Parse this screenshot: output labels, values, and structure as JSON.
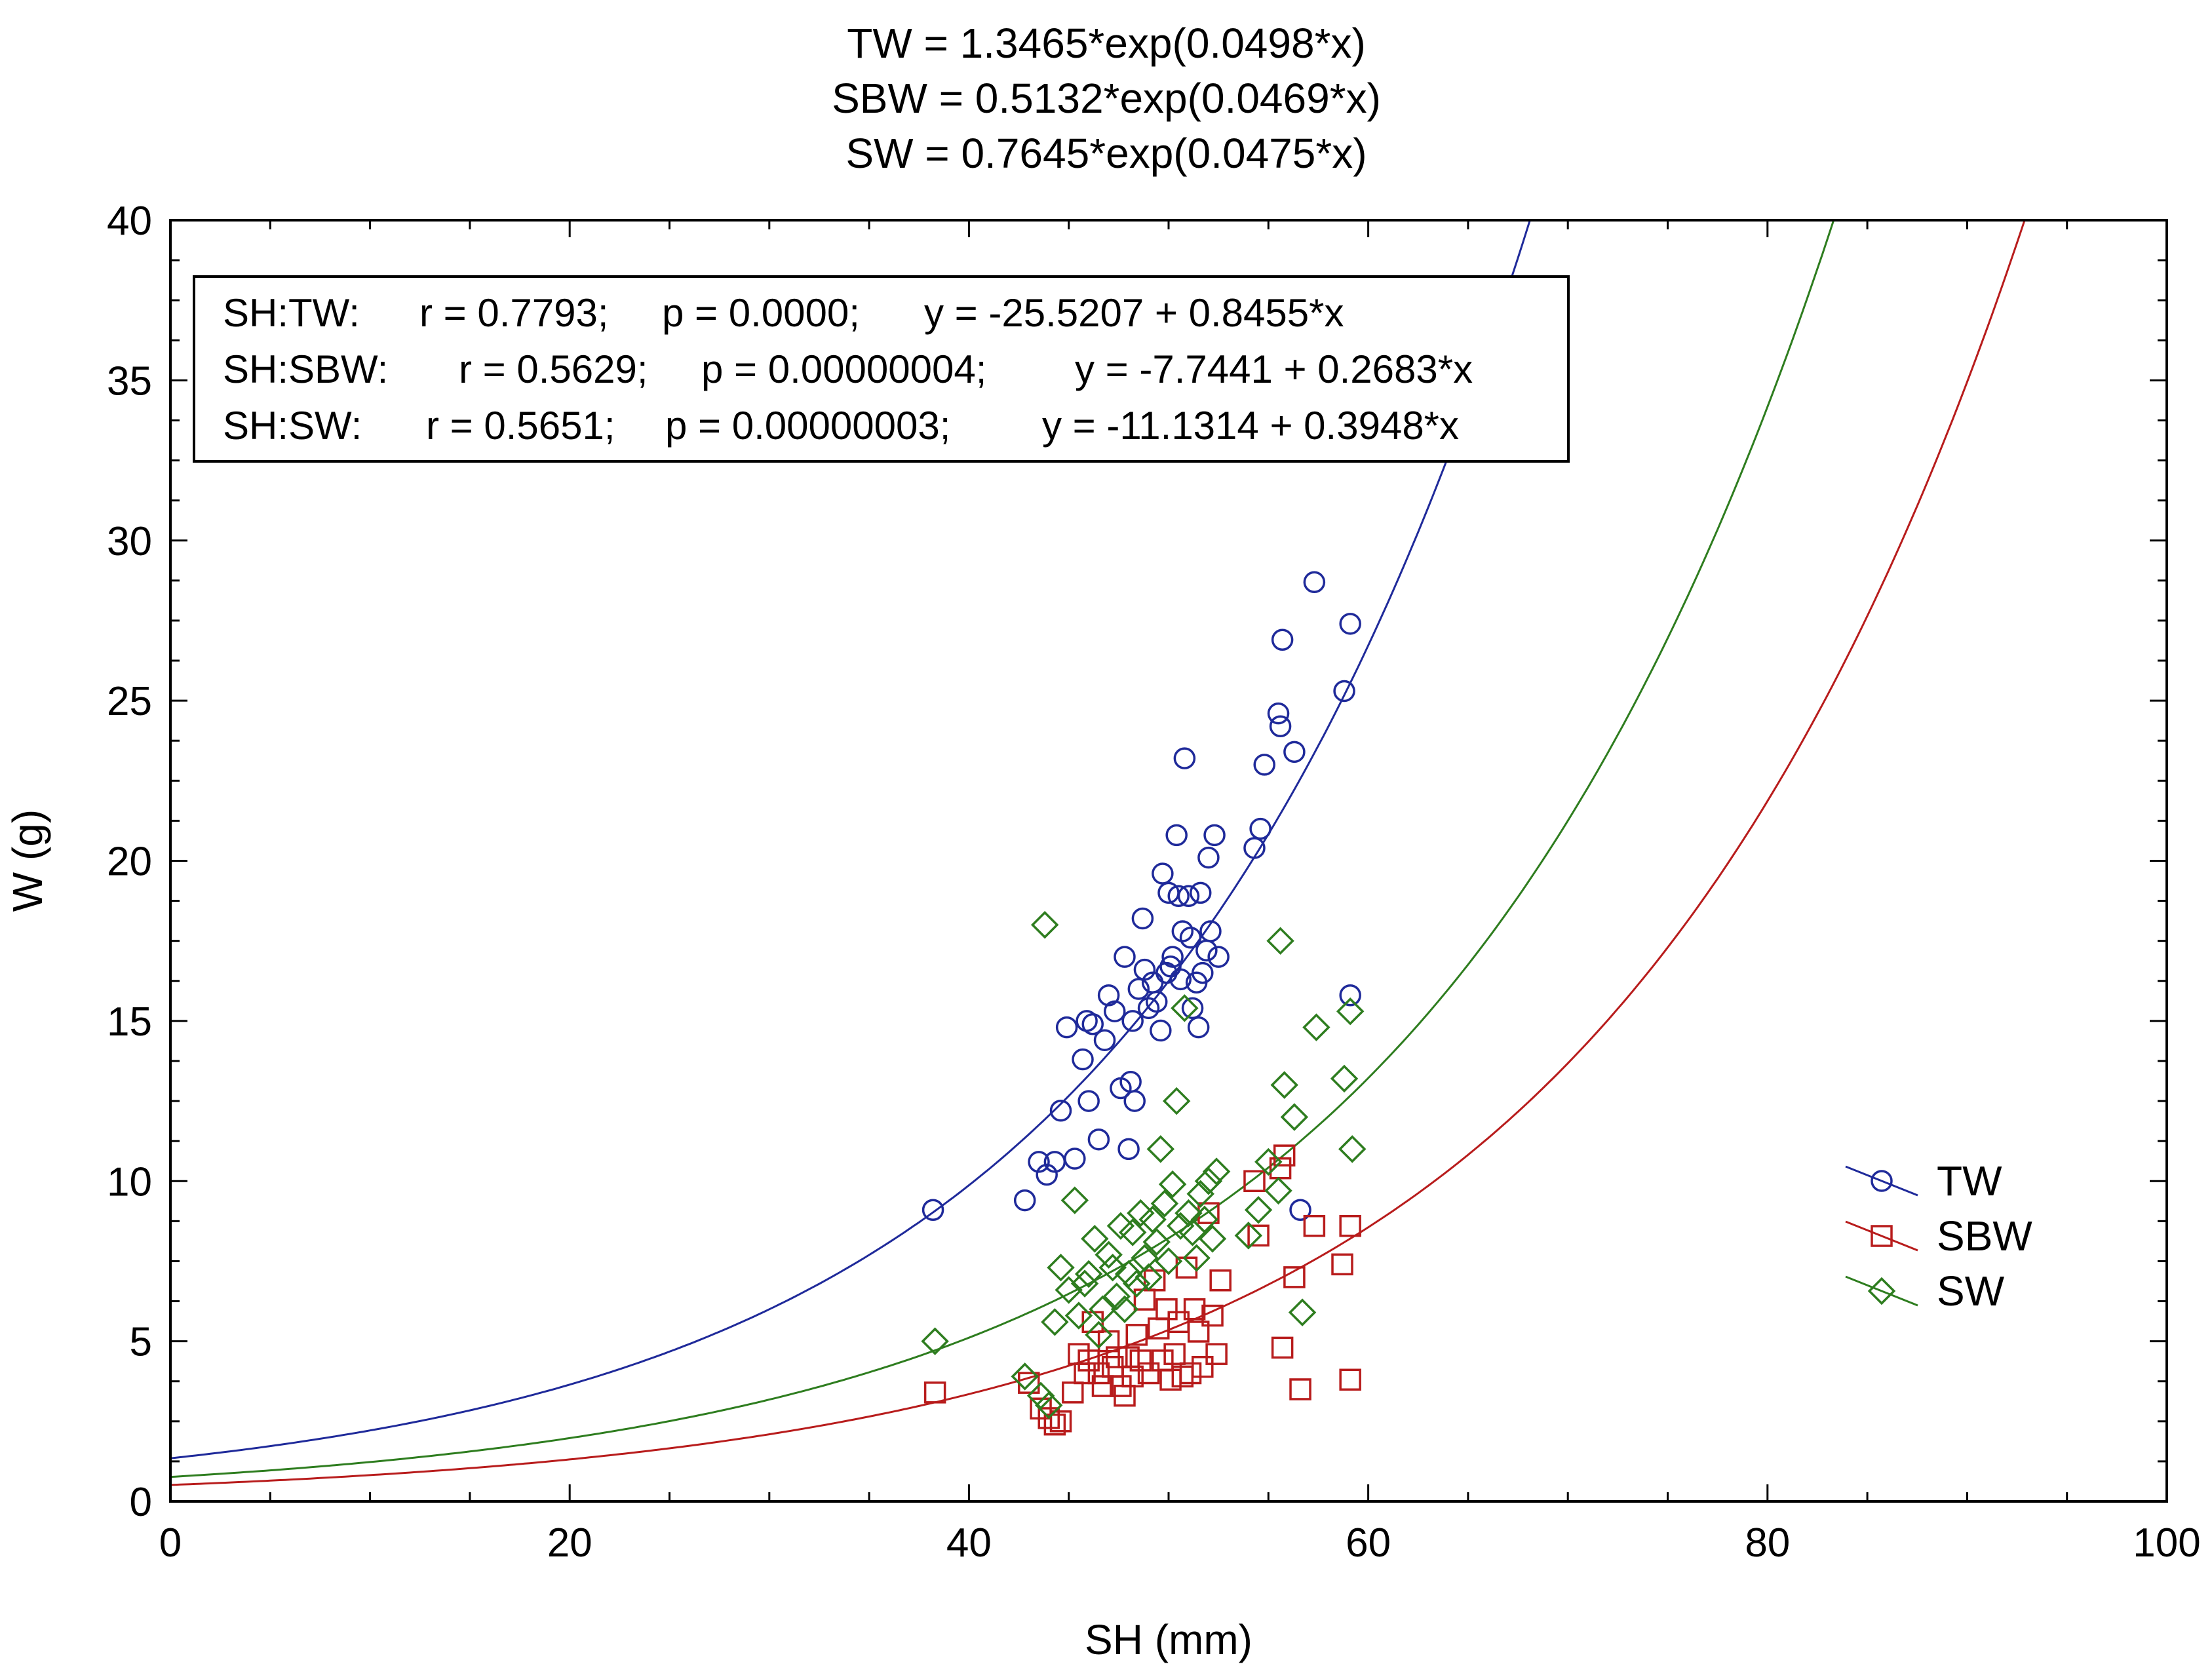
{
  "chart_data": {
    "type": "scatter",
    "title_lines": [
      "TW = 1.3465*exp(0.0498*x)",
      "SBW = 0.5132*exp(0.0469*x)",
      "SW = 0.7645*exp(0.0475*x)"
    ],
    "xlabel": "SH (mm)",
    "ylabel": "W (g)",
    "xlim": [
      0,
      100
    ],
    "ylim": [
      0,
      40
    ],
    "x_ticks": [
      0,
      20,
      40,
      60,
      80,
      100
    ],
    "y_ticks": [
      0,
      5,
      10,
      15,
      20,
      25,
      30,
      35,
      40
    ],
    "x_tick_labels": [
      "0",
      "20",
      "40",
      "60",
      "80",
      "100"
    ],
    "y_tick_labels": [
      "0",
      "5",
      "10",
      "15",
      "20",
      "25",
      "30",
      "35",
      "40"
    ],
    "grid": false,
    "legend_position": "bottom-right",
    "stats_box": {
      "position": "top-left",
      "lines": [
        {
          "label": "SH:TW:",
          "r": "r = 0.7793;",
          "p": "p = 0.0000;",
          "eq": "y = -25.5207 + 0.8455*x"
        },
        {
          "label": "SH:SBW:",
          "r": "r = 0.5629;",
          "p": "p = 0.00000004;",
          "eq": "y = -7.7441 + 0.2683*x"
        },
        {
          "label": "SH:SW:",
          "r": "r = 0.5651;",
          "p": "p = 0.00000003;",
          "eq": "y = -11.1314 + 0.3948*x"
        }
      ]
    },
    "series": [
      {
        "name": "TW",
        "marker": "circle",
        "color": "#1f2a9a",
        "fit": {
          "a": 1.3465,
          "b": 0.0498
        },
        "points": [
          [
            38.2,
            9.1
          ],
          [
            42.8,
            9.4
          ],
          [
            43.5,
            10.6
          ],
          [
            43.9,
            10.2
          ],
          [
            44.3,
            10.6
          ],
          [
            44.6,
            12.2
          ],
          [
            44.9,
            14.8
          ],
          [
            45.3,
            10.7
          ],
          [
            45.7,
            13.8
          ],
          [
            45.9,
            15.0
          ],
          [
            46.0,
            12.5
          ],
          [
            46.2,
            14.9
          ],
          [
            46.5,
            11.3
          ],
          [
            46.8,
            14.4
          ],
          [
            47.0,
            15.8
          ],
          [
            47.3,
            15.3
          ],
          [
            47.6,
            12.9
          ],
          [
            47.8,
            17.0
          ],
          [
            48.0,
            11.0
          ],
          [
            48.1,
            13.1
          ],
          [
            48.2,
            15.0
          ],
          [
            48.3,
            12.5
          ],
          [
            48.5,
            16.0
          ],
          [
            48.7,
            18.2
          ],
          [
            48.8,
            16.6
          ],
          [
            49.0,
            15.4
          ],
          [
            49.2,
            16.2
          ],
          [
            49.4,
            15.6
          ],
          [
            49.6,
            14.7
          ],
          [
            49.7,
            19.6
          ],
          [
            49.9,
            16.5
          ],
          [
            50.0,
            19.0
          ],
          [
            50.1,
            16.7
          ],
          [
            50.2,
            17.0
          ],
          [
            50.4,
            20.8
          ],
          [
            50.5,
            18.9
          ],
          [
            50.6,
            16.3
          ],
          [
            50.7,
            17.8
          ],
          [
            50.8,
            23.2
          ],
          [
            51.0,
            18.9
          ],
          [
            51.1,
            17.6
          ],
          [
            51.2,
            15.4
          ],
          [
            51.4,
            16.2
          ],
          [
            51.5,
            14.8
          ],
          [
            51.6,
            19.0
          ],
          [
            51.7,
            16.5
          ],
          [
            51.9,
            17.2
          ],
          [
            52.0,
            20.1
          ],
          [
            52.1,
            17.8
          ],
          [
            52.3,
            20.8
          ],
          [
            52.5,
            17.0
          ],
          [
            54.3,
            20.4
          ],
          [
            54.6,
            21.0
          ],
          [
            54.8,
            23.0
          ],
          [
            55.5,
            24.6
          ],
          [
            55.6,
            24.2
          ],
          [
            55.7,
            26.9
          ],
          [
            56.3,
            23.4
          ],
          [
            56.6,
            9.1
          ],
          [
            57.3,
            28.7
          ],
          [
            58.8,
            25.3
          ],
          [
            59.1,
            27.4
          ],
          [
            59.1,
            15.8
          ]
        ]
      },
      {
        "name": "SBW",
        "marker": "square",
        "color": "#b81c1c",
        "fit": {
          "a": 0.5132,
          "b": 0.0469
        },
        "points": [
          [
            38.3,
            3.4
          ],
          [
            43.0,
            3.7
          ],
          [
            43.6,
            2.9
          ],
          [
            44.0,
            2.6
          ],
          [
            44.3,
            2.4
          ],
          [
            44.6,
            2.5
          ],
          [
            45.2,
            3.4
          ],
          [
            45.5,
            4.6
          ],
          [
            45.8,
            4.0
          ],
          [
            46.0,
            4.4
          ],
          [
            46.2,
            5.6
          ],
          [
            46.5,
            4.0
          ],
          [
            46.7,
            3.6
          ],
          [
            47.0,
            5.0
          ],
          [
            47.2,
            4.2
          ],
          [
            47.4,
            4.5
          ],
          [
            47.6,
            3.6
          ],
          [
            47.8,
            3.3
          ],
          [
            48.0,
            4.5
          ],
          [
            48.2,
            3.9
          ],
          [
            48.4,
            5.2
          ],
          [
            48.6,
            4.4
          ],
          [
            48.8,
            6.3
          ],
          [
            49.0,
            4.0
          ],
          [
            49.3,
            6.9
          ],
          [
            49.5,
            5.4
          ],
          [
            49.7,
            4.4
          ],
          [
            49.9,
            6.0
          ],
          [
            50.1,
            3.8
          ],
          [
            50.3,
            4.6
          ],
          [
            50.5,
            5.6
          ],
          [
            50.7,
            3.9
          ],
          [
            50.9,
            7.3
          ],
          [
            51.1,
            4.0
          ],
          [
            51.3,
            6.0
          ],
          [
            51.5,
            5.3
          ],
          [
            51.7,
            4.2
          ],
          [
            52.0,
            9.0
          ],
          [
            52.2,
            5.8
          ],
          [
            52.4,
            4.6
          ],
          [
            52.6,
            6.9
          ],
          [
            54.3,
            10.0
          ],
          [
            54.5,
            8.3
          ],
          [
            55.6,
            10.4
          ],
          [
            55.8,
            10.8
          ],
          [
            55.7,
            4.8
          ],
          [
            56.3,
            7.0
          ],
          [
            56.6,
            3.5
          ],
          [
            57.3,
            8.6
          ],
          [
            58.7,
            7.4
          ],
          [
            59.1,
            8.6
          ],
          [
            59.1,
            3.8
          ]
        ]
      },
      {
        "name": "SW",
        "marker": "diamond",
        "color": "#2e7d1f",
        "fit": {
          "a": 0.7645,
          "b": 0.0475
        },
        "points": [
          [
            38.3,
            5.0
          ],
          [
            42.8,
            3.9
          ],
          [
            43.6,
            3.3
          ],
          [
            43.8,
            18.0
          ],
          [
            44.0,
            3.0
          ],
          [
            44.3,
            5.6
          ],
          [
            44.6,
            7.3
          ],
          [
            45.0,
            6.6
          ],
          [
            45.3,
            9.4
          ],
          [
            45.5,
            5.8
          ],
          [
            45.8,
            6.8
          ],
          [
            46.0,
            7.1
          ],
          [
            46.3,
            8.2
          ],
          [
            46.5,
            5.2
          ],
          [
            46.7,
            6.0
          ],
          [
            47.0,
            7.7
          ],
          [
            47.2,
            7.3
          ],
          [
            47.4,
            6.4
          ],
          [
            47.6,
            8.6
          ],
          [
            47.8,
            6.0
          ],
          [
            48.0,
            7.1
          ],
          [
            48.2,
            8.4
          ],
          [
            48.4,
            6.8
          ],
          [
            48.6,
            9.0
          ],
          [
            48.8,
            7.6
          ],
          [
            49.0,
            7.0
          ],
          [
            49.2,
            8.8
          ],
          [
            49.4,
            8.1
          ],
          [
            49.6,
            11.0
          ],
          [
            49.8,
            9.3
          ],
          [
            50.0,
            7.5
          ],
          [
            50.2,
            9.9
          ],
          [
            50.4,
            12.5
          ],
          [
            50.6,
            8.6
          ],
          [
            50.8,
            15.4
          ],
          [
            51.0,
            9.0
          ],
          [
            51.2,
            8.4
          ],
          [
            51.4,
            7.6
          ],
          [
            51.6,
            9.6
          ],
          [
            51.8,
            8.8
          ],
          [
            52.0,
            10.0
          ],
          [
            52.2,
            8.2
          ],
          [
            52.4,
            10.3
          ],
          [
            54.0,
            8.3
          ],
          [
            54.5,
            9.1
          ],
          [
            55.0,
            10.6
          ],
          [
            55.5,
            9.7
          ],
          [
            55.6,
            17.5
          ],
          [
            55.8,
            13.0
          ],
          [
            56.3,
            12.0
          ],
          [
            56.7,
            5.9
          ],
          [
            57.4,
            14.8
          ],
          [
            58.8,
            13.2
          ],
          [
            59.1,
            15.3
          ],
          [
            59.2,
            11.0
          ]
        ]
      }
    ]
  }
}
